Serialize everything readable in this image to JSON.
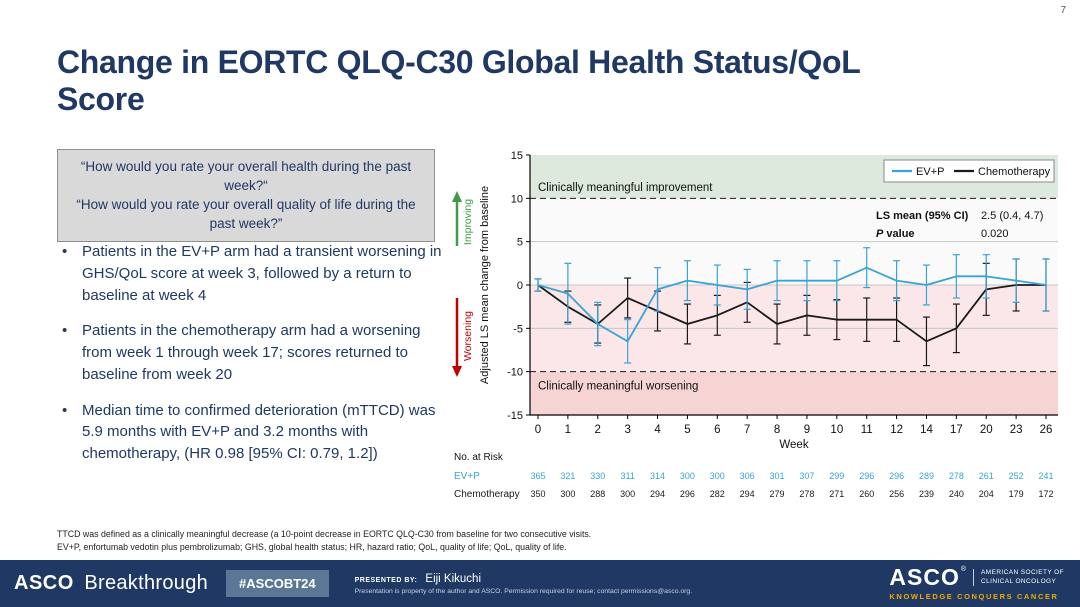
{
  "page_number": "7",
  "title": "Change in EORTC QLQ-C30 Global Health Status/QoL Score",
  "quote_box": {
    "line1": "“How would you rate your overall health during the past week?“",
    "line2": "“How would you rate your overall quality of life during the past week?”"
  },
  "bullets": [
    "Patients in the EV+P arm had a transient worsening in GHS/QoL score at week 3, followed by a return to baseline at week 4",
    "Patients in the chemotherapy arm had a worsening from week 1 through week 17; scores returned to baseline from week 20",
    "Median time to confirmed deterioration (mTTCD) was 5.9 months with EV+P and 3.2 months with chemotherapy, (HR 0.98 [95% CI: 0.79, 1.2])"
  ],
  "chart_data": {
    "type": "line",
    "x": [
      0,
      1,
      2,
      3,
      4,
      5,
      6,
      7,
      8,
      9,
      10,
      11,
      12,
      14,
      17,
      20,
      23,
      26
    ],
    "xlabel": "Week",
    "ylabel": "Adjusted LS mean change from baseline",
    "ylim": [
      -15,
      15
    ],
    "yticks": [
      -15,
      -10,
      -5,
      0,
      5,
      10,
      15
    ],
    "grid_values": [
      -5,
      0,
      5
    ],
    "threshold_values": [
      10,
      -10
    ],
    "legend_position": "top-right",
    "series": [
      {
        "name": "EV+P",
        "color": "#38a3d8",
        "values": [
          0,
          -1,
          -4.5,
          -6.5,
          -0.5,
          0.5,
          0,
          -0.5,
          0.5,
          0.5,
          0.5,
          2,
          0.5,
          0,
          1,
          1,
          0.5,
          0
        ],
        "ci_halfwidth": [
          0.7,
          3.5,
          2.5,
          2.5,
          2.5,
          2.3,
          2.3,
          2.3,
          2.3,
          2.3,
          2.3,
          2.3,
          2.3,
          2.3,
          2.5,
          2.5,
          2.5,
          3
        ]
      },
      {
        "name": "Chemotherapy",
        "color": "#1a1a1a",
        "values": [
          0,
          -2.5,
          -4.5,
          -1.5,
          -3,
          -4.5,
          -3.5,
          -2,
          -4.5,
          -3.5,
          -4,
          -4,
          -4,
          -6.5,
          -5,
          -0.5,
          0,
          0
        ],
        "ci_halfwidth": [
          0.7,
          1.8,
          2.2,
          2.3,
          2.3,
          2.3,
          2.3,
          2.3,
          2.3,
          2.3,
          2.3,
          2.5,
          2.5,
          2.8,
          2.8,
          3,
          3,
          3
        ]
      }
    ],
    "annotations": {
      "improvement_band_label": "Clinically meaningful improvement",
      "worsening_band_label": "Clinically meaningful worsening",
      "improving_axis_label": "Improving",
      "worsening_axis_label": "Worsening",
      "ls_mean_label": "LS mean (95% CI)",
      "ls_mean_value": "2.5 (0.4, 4.7)",
      "p_label": "P value",
      "p_value": "0.020"
    },
    "colors": {
      "improvement_band": "#dce9dc",
      "neutral_band": "#fafafa",
      "mild_worsening_band": "#fbe7e7",
      "worsening_band": "#f6d4d4",
      "improving_arrow": "#3f9b45",
      "worsening_arrow": "#c00000"
    }
  },
  "risk_table": {
    "title": "No. at Risk",
    "rows": [
      {
        "label": "EV+P",
        "color": "#38a3d8",
        "values": [
          365,
          321,
          330,
          311,
          314,
          300,
          300,
          306,
          301,
          307,
          299,
          296,
          296,
          289,
          278,
          261,
          252,
          241
        ]
      },
      {
        "label": "Chemotherapy",
        "color": "#1a1a1a",
        "values": [
          350,
          300,
          288,
          300,
          294,
          296,
          282,
          294,
          279,
          278,
          271,
          260,
          256,
          239,
          240,
          204,
          179,
          172
        ]
      }
    ]
  },
  "footnotes": [
    "TTCD was defined as a clinically meaningful decrease (a 10-point decrease in EORTC QLQ-C30 from baseline for two consecutive visits.",
    "EV+P, enfortumab vedotin plus pembrolizumab; GHS, global health status; HR, hazard ratio; QoL, quality of life; QoL, quality of life."
  ],
  "footer": {
    "brand_bold": "ASCO",
    "brand_light": "Breakthrough",
    "hashtag": "#ASCOBT24",
    "presented_by_label": "PRESENTED BY:",
    "presenter": "Eiji Kikuchi",
    "disclaimer": "Presentation is property of the author and ASCO. Permission required for reuse; contact permissions@asco.org.",
    "logo": {
      "name": "ASCO",
      "reg": "®",
      "society_line1": "AMERICAN SOCIETY OF",
      "society_line2": "CLINICAL ONCOLOGY",
      "tagline": "KNOWLEDGE CONQUERS CANCER"
    }
  }
}
